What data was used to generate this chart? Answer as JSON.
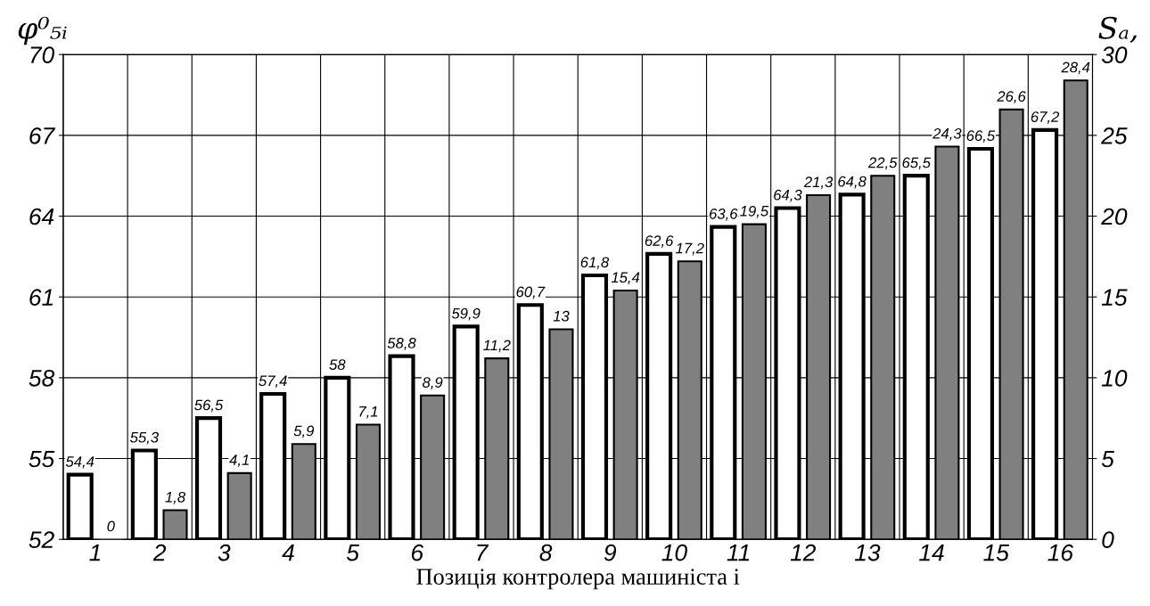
{
  "chart_data": {
    "type": "bar",
    "xlabel": "Позиція контролера машиніста i",
    "ylabel": "φ⁰₅ᵢ",
    "y2label": "Sₐ,",
    "categories": [
      "1",
      "2",
      "3",
      "4",
      "5",
      "6",
      "7",
      "8",
      "9",
      "10",
      "11",
      "12",
      "13",
      "14",
      "15",
      "16"
    ],
    "series": [
      {
        "color": "#ffffff",
        "values": [
          54.4,
          55.3,
          56.5,
          57.4,
          58,
          58.8,
          59.9,
          60.7,
          61.8,
          62.6,
          63.6,
          64.3,
          64.8,
          65.5,
          66.5,
          67.2
        ],
        "value_labels": [
          "54,4",
          "55,3",
          "56,5",
          "57,4",
          "58",
          "58,8",
          "59,9",
          "60,7",
          "61,8",
          "62,6",
          "63,6",
          "64,3",
          "64,8",
          "65,5",
          "66,5",
          "67,2"
        ]
      },
      {
        "color": "#808080",
        "axis": "y2",
        "values": [
          0,
          1.8,
          4.1,
          5.9,
          7.1,
          8.9,
          11.2,
          13,
          15.4,
          17.2,
          19.5,
          21.3,
          22.5,
          24.3,
          26.6,
          28.4
        ],
        "value_labels": [
          "0",
          "1,8",
          "4,1",
          "5,9",
          "7,1",
          "8,9",
          "11,2",
          "13",
          "15,4",
          "17,2",
          "19,5",
          "21,3",
          "22,5",
          "24,3",
          "26,6",
          "28,4"
        ]
      }
    ],
    "ylim": [
      52,
      70
    ],
    "yticks": [
      52,
      55,
      58,
      61,
      64,
      67,
      70
    ],
    "y2lim": [
      0,
      30
    ],
    "y2ticks": [
      0,
      5,
      10,
      15,
      20,
      25,
      30
    ],
    "grid": true,
    "legend": false
  }
}
